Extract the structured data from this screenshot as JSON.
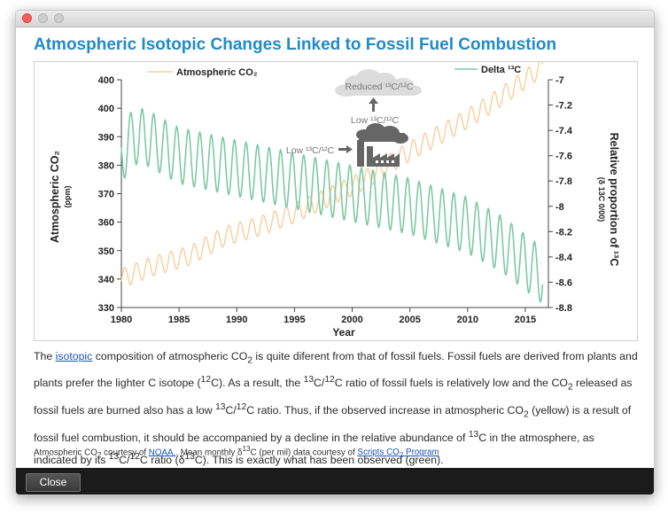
{
  "window": {
    "heading": "Atmospheric Isotopic Changes Linked to Fossil Fuel Combustion",
    "close_label": "Close"
  },
  "chart_data": {
    "type": "line",
    "xlabel": "Year",
    "ylabel_left": "Atmospheric CO₂",
    "ylabel_left_unit": "(ppm)",
    "ylabel_right": "Relative proportion of ¹³C",
    "ylabel_right_unit": "(δ 13C 0/00)",
    "xlim": [
      1980,
      2017
    ],
    "x_ticks": [
      "1980",
      "1985",
      "1990",
      "1995",
      "2000",
      "2005",
      "2010",
      "2015"
    ],
    "left_ylim": [
      330,
      400
    ],
    "left_ticks": [
      "400",
      "400",
      "390",
      "380",
      "370",
      "360",
      "350",
      "340",
      "330"
    ],
    "right_ylim": [
      -8.8,
      -7.0
    ],
    "right_ticks": [
      "-7",
      "-7.2",
      "-7.4",
      "-7.6",
      "-7.8",
      "-8",
      "-8.2",
      "-8.4",
      "-8.6",
      "-8.8"
    ],
    "legend": {
      "co2_label": "Atmospheric CO₂",
      "delta_label": "Delta ¹³C",
      "placement": "top"
    },
    "annotations": {
      "reduced": "Reduced ¹³C/¹²C",
      "low_upper": "Low ¹³C/¹²C",
      "low_left": "Low ¹³C/¹²C"
    },
    "series": [
      {
        "name": "Atmospheric CO₂",
        "axis": "left",
        "color": "#f7cf9c",
        "x": [
          1980,
          1983,
          1986,
          1989,
          1992,
          1995,
          1998,
          2001,
          2004,
          2007,
          2010,
          2013,
          2016.5
        ],
        "trend": [
          339,
          343,
          346,
          352,
          355,
          359,
          364,
          369,
          376,
          382,
          388,
          395,
          404
        ],
        "seasonal_amplitude_ppm": 3
      },
      {
        "name": "Delta ¹³C",
        "axis": "right",
        "color": "#7dc9a4",
        "x": [
          1980,
          1981,
          1982,
          1985,
          1990,
          1995,
          2000,
          2005,
          2010,
          2013,
          2016.5
        ],
        "trend": [
          -7.6,
          -7.45,
          -7.45,
          -7.6,
          -7.7,
          -7.8,
          -7.9,
          -8.0,
          -8.15,
          -8.3,
          -8.55
        ],
        "seasonal_amplitude_permil": 0.22
      }
    ]
  },
  "body_text": {
    "p1": "The ",
    "link_isotopic": "isotopic",
    "p2": " composition of atmospheric CO",
    "sub_2a": "2",
    "p3": " is quite diferent from that of fossil fuels. Fossil fuels are derived from plants and plants prefer the lighter C isotope (",
    "sup_12a": "12",
    "p4": "C). As a result, the ",
    "sup_13a": "13",
    "p5": "C/",
    "sup_12b": "12",
    "p6": "C ratio of fossil fuels is relatively low and the CO",
    "sub_2b": "2",
    "p7": " released as fossil fuels are burned also has a low ",
    "sup_13b": "13",
    "p8": "C/",
    "sup_12c": "12",
    "p9": "C ratio. Thus, if the observed increase in atmospheric CO",
    "sub_2c": "2",
    "p10": " (yellow) is a result of fossil fuel combustion, it should be accompanied by a decline in the relative abundance of ",
    "sup_13c": "13",
    "p11": "C in the atmosphere, as indicated by its ",
    "sup_13d": "13",
    "p12": "C/",
    "sup_12d": "12",
    "p13": "C ratio (δ",
    "sup_13e": "13",
    "p14": "C). This is exactly what has been observed (green)."
  },
  "credit": {
    "c1": "Atmospheric CO",
    "sub_2": "2",
    "c2": " courtesy of ",
    "link_noaa": "NOAA.",
    "c3": ". Mean monthly δ",
    "sup_13": "13",
    "c4": "C (per mil) data courtesy of ",
    "link_scripps": "Scripts CO",
    "link_scripps_sub": "2",
    "link_scripps_end": " Program"
  }
}
